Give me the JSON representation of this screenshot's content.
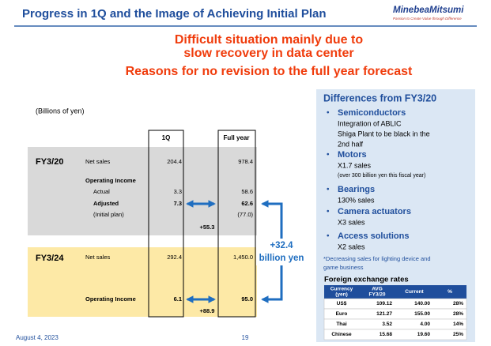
{
  "header": {
    "title": "Progress in 1Q and the Image of Achieving Initial Plan",
    "logo": "MinebeaMitsumi",
    "tagline": "Passion to Create Value through Difference"
  },
  "headline": [
    "Difficult situation mainly due to",
    "slow recovery in data center",
    "Reasons for no revision to the full year forecast"
  ],
  "unit_note": "(Billions of yen)",
  "table": {
    "columns": [
      "1Q",
      "Full year"
    ],
    "sections": [
      {
        "label": "FY3/20",
        "rows": [
          {
            "label": "Net sales",
            "q1": "204.4",
            "full": "978.4"
          },
          {
            "label": "Operating Income"
          },
          {
            "label": "Actual",
            "q1": "3.3",
            "full": "58.6"
          },
          {
            "label": "Adjusted",
            "q1": "7.3",
            "full": "62.6"
          },
          {
            "label": "(Initial plan)",
            "full": "(77.0)"
          }
        ]
      },
      {
        "label": "FY3/24",
        "rows": [
          {
            "label": "Net sales",
            "q1": "292.4",
            "full": "1,450.0"
          },
          {
            "label": "Operating Income",
            "q1": "6.1",
            "full": "95.0"
          }
        ]
      }
    ]
  },
  "annotations": {
    "gap_fy20": "+55.3",
    "gap_fy24": "+88.9",
    "total": [
      "+32.4",
      "billion yen"
    ]
  },
  "panel": {
    "title": "Differences from FY3/20",
    "items": [
      {
        "heading": "Semiconductors",
        "lines": [
          "Integration of ABLIC",
          "Shiga Plant to be black in the",
          "2nd half"
        ]
      },
      {
        "heading": "Motors",
        "lines": [
          "X1.7 sales",
          "(over 300 billion yen this fiscal year)"
        ]
      },
      {
        "heading": "Bearings",
        "lines": [
          "130% sales"
        ]
      },
      {
        "heading": "Camera actuators",
        "lines": [
          "X3 sales"
        ]
      },
      {
        "heading": "Access solutions",
        "lines": [
          "X2 sales"
        ]
      }
    ],
    "note": [
      "*Decreasing sales for lighting device and",
      "game business"
    ]
  },
  "fx": {
    "title": "Foreign exchange rates",
    "columns": [
      [
        "Currency",
        "(yen)"
      ],
      [
        "AVG",
        "FY3/20"
      ],
      [
        "Current"
      ],
      [
        "%"
      ]
    ],
    "rows": [
      [
        "US$",
        "109.12",
        "140.00",
        "28%"
      ],
      [
        "Euro",
        "121.27",
        "155.00",
        "28%"
      ],
      [
        "Thai",
        "3.52",
        "4.00",
        "14%"
      ],
      [
        "Chinese",
        "15.68",
        "19.60",
        "25%"
      ]
    ]
  },
  "footer": {
    "date": "August 4, 2023",
    "page": "19"
  }
}
